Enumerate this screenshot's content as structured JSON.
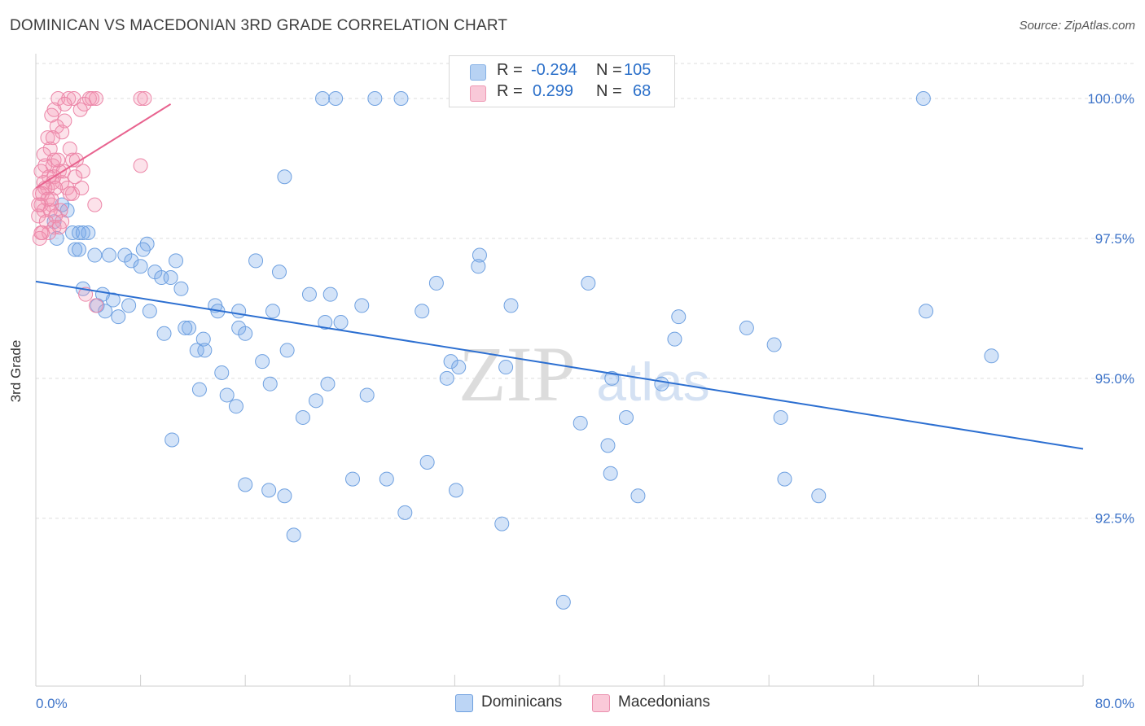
{
  "header": {
    "title": "DOMINICAN VS MACEDONIAN 3RD GRADE CORRELATION CHART",
    "source": "Source: ZipAtlas.com"
  },
  "watermark": {
    "zip": "ZIP",
    "atlas": "atlas"
  },
  "stats": {
    "rows": [
      {
        "r_label": "R =",
        "r_value": "-0.294",
        "n_label": "N =",
        "n_value": "105",
        "color": "#9fc3ef",
        "border": "#5e97dd"
      },
      {
        "r_label": "R =",
        "r_value": "0.299",
        "n_label": "N =",
        "n_value": "68",
        "color": "#f7b8cc",
        "border": "#e9789b"
      }
    ]
  },
  "legend": {
    "items": [
      {
        "label": "Dominicans",
        "color": "#bcd5f5",
        "border": "#6d9fdf"
      },
      {
        "label": "Macedonians",
        "color": "#fac9d8",
        "border": "#ea8fae"
      }
    ]
  },
  "colors": {
    "dominican_fill": "rgba(120,170,235,0.33)",
    "dominican_stroke": "#6ea0e0",
    "dominican_line": "#2c6fd1",
    "macedonian_fill": "rgba(245,150,180,0.28)",
    "macedonian_stroke": "#ec86a8",
    "macedonian_line": "#e8638f",
    "grid": "#dddddd",
    "axis_label": "#3d73c8"
  },
  "chart_data": {
    "type": "scatter",
    "title": "DOMINICAN VS MACEDONIAN 3RD GRADE CORRELATION CHART",
    "xlabel": "",
    "ylabel": "3rd Grade",
    "xlim": [
      0,
      80
    ],
    "ylim": [
      89.5,
      100.8
    ],
    "x_tick_labels": [
      {
        "value": 0,
        "label": "0.0%"
      },
      {
        "value": 80,
        "label": "80.0%"
      }
    ],
    "y_tick_labels": [
      {
        "value": 100,
        "label": "100.0%"
      },
      {
        "value": 97.5,
        "label": "97.5%"
      },
      {
        "value": 95,
        "label": "95.0%"
      },
      {
        "value": 92.5,
        "label": "92.5%"
      }
    ],
    "grid": true,
    "legend_position": "bottom-center",
    "series": [
      {
        "name": "Dominicans",
        "trend": {
          "x": [
            0,
            80
          ],
          "y": [
            96.73,
            93.74
          ]
        },
        "points": [
          [
            21.9,
            100.0
          ],
          [
            22.9,
            100.0
          ],
          [
            25.9,
            100.0
          ],
          [
            27.9,
            100.0
          ],
          [
            32.5,
            100.0
          ],
          [
            67.8,
            100.0
          ],
          [
            19.0,
            98.6
          ],
          [
            2.0,
            98.1
          ],
          [
            1.4,
            97.8
          ],
          [
            2.8,
            97.6
          ],
          [
            3.3,
            97.6
          ],
          [
            4.0,
            97.6
          ],
          [
            3.6,
            97.6
          ],
          [
            8.5,
            97.4
          ],
          [
            8.2,
            97.3
          ],
          [
            3.0,
            97.3
          ],
          [
            3.3,
            97.3
          ],
          [
            4.5,
            97.2
          ],
          [
            5.6,
            97.2
          ],
          [
            6.8,
            97.2
          ],
          [
            7.3,
            97.1
          ],
          [
            10.7,
            97.1
          ],
          [
            16.8,
            97.1
          ],
          [
            33.9,
            97.2
          ],
          [
            8.0,
            97.0
          ],
          [
            9.1,
            96.9
          ],
          [
            18.6,
            96.9
          ],
          [
            33.8,
            97.0
          ],
          [
            9.6,
            96.8
          ],
          [
            10.3,
            96.8
          ],
          [
            30.6,
            96.7
          ],
          [
            42.2,
            96.7
          ],
          [
            11.1,
            96.6
          ],
          [
            3.6,
            96.6
          ],
          [
            20.9,
            96.5
          ],
          [
            22.5,
            96.5
          ],
          [
            5.1,
            96.5
          ],
          [
            5.9,
            96.4
          ],
          [
            24.9,
            96.3
          ],
          [
            36.3,
            96.3
          ],
          [
            4.7,
            96.3
          ],
          [
            13.7,
            96.3
          ],
          [
            15.5,
            96.2
          ],
          [
            7.1,
            96.3
          ],
          [
            13.9,
            96.2
          ],
          [
            5.3,
            96.2
          ],
          [
            8.7,
            96.2
          ],
          [
            18.1,
            96.2
          ],
          [
            29.5,
            96.2
          ],
          [
            6.3,
            96.1
          ],
          [
            49.1,
            96.1
          ],
          [
            22.1,
            96.0
          ],
          [
            23.3,
            96.0
          ],
          [
            11.7,
            95.9
          ],
          [
            11.4,
            95.9
          ],
          [
            15.5,
            95.9
          ],
          [
            54.3,
            95.9
          ],
          [
            9.8,
            95.8
          ],
          [
            16.0,
            95.8
          ],
          [
            12.8,
            95.7
          ],
          [
            48.8,
            95.7
          ],
          [
            56.4,
            95.6
          ],
          [
            12.3,
            95.5
          ],
          [
            19.2,
            95.5
          ],
          [
            12.9,
            95.5
          ],
          [
            17.3,
            95.3
          ],
          [
            31.7,
            95.3
          ],
          [
            32.3,
            95.2
          ],
          [
            35.9,
            95.2
          ],
          [
            14.2,
            95.1
          ],
          [
            31.4,
            95.0
          ],
          [
            44.0,
            95.0
          ],
          [
            17.9,
            94.9
          ],
          [
            22.3,
            94.9
          ],
          [
            47.8,
            94.9
          ],
          [
            12.5,
            94.8
          ],
          [
            25.3,
            94.7
          ],
          [
            14.6,
            94.7
          ],
          [
            21.4,
            94.6
          ],
          [
            15.3,
            94.5
          ],
          [
            20.4,
            94.3
          ],
          [
            45.1,
            94.3
          ],
          [
            56.9,
            94.3
          ],
          [
            41.6,
            94.2
          ],
          [
            10.4,
            93.9
          ],
          [
            43.7,
            93.8
          ],
          [
            29.9,
            93.5
          ],
          [
            43.9,
            93.3
          ],
          [
            24.2,
            93.2
          ],
          [
            26.8,
            93.2
          ],
          [
            57.2,
            93.2
          ],
          [
            16.0,
            93.1
          ],
          [
            32.1,
            93.0
          ],
          [
            17.8,
            93.0
          ],
          [
            19.0,
            92.9
          ],
          [
            46.0,
            92.9
          ],
          [
            59.8,
            92.9
          ],
          [
            28.2,
            92.6
          ],
          [
            35.6,
            92.4
          ],
          [
            19.7,
            92.2
          ],
          [
            40.3,
            91.0
          ],
          [
            68.0,
            96.2
          ],
          [
            73.0,
            95.4
          ],
          [
            1.6,
            97.5
          ],
          [
            2.4,
            98.0
          ]
        ]
      },
      {
        "name": "Macedonians",
        "trend": {
          "x": [
            0,
            10.3
          ],
          "y": [
            98.4,
            99.9
          ]
        },
        "points": [
          [
            1.7,
            100.0
          ],
          [
            2.5,
            100.0
          ],
          [
            2.9,
            100.0
          ],
          [
            4.1,
            100.0
          ],
          [
            4.6,
            100.0
          ],
          [
            8.0,
            100.0
          ],
          [
            8.3,
            100.0
          ],
          [
            4.3,
            100.0
          ],
          [
            2.2,
            99.9
          ],
          [
            3.7,
            99.9
          ],
          [
            3.4,
            99.8
          ],
          [
            1.4,
            99.8
          ],
          [
            2.2,
            99.6
          ],
          [
            1.6,
            99.5
          ],
          [
            2.0,
            99.4
          ],
          [
            0.9,
            99.3
          ],
          [
            1.3,
            99.3
          ],
          [
            2.6,
            99.1
          ],
          [
            1.1,
            99.1
          ],
          [
            0.6,
            99.0
          ],
          [
            2.8,
            98.9
          ],
          [
            1.4,
            98.9
          ],
          [
            3.1,
            98.9
          ],
          [
            0.7,
            98.8
          ],
          [
            1.3,
            98.8
          ],
          [
            8.0,
            98.8
          ],
          [
            1.8,
            98.7
          ],
          [
            3.6,
            98.7
          ],
          [
            0.4,
            98.7
          ],
          [
            1.0,
            98.6
          ],
          [
            1.4,
            98.6
          ],
          [
            0.6,
            98.5
          ],
          [
            2.0,
            98.5
          ],
          [
            1.3,
            98.5
          ],
          [
            0.9,
            98.4
          ],
          [
            2.4,
            98.4
          ],
          [
            0.7,
            98.4
          ],
          [
            3.5,
            98.4
          ],
          [
            1.5,
            98.4
          ],
          [
            0.3,
            98.3
          ],
          [
            0.5,
            98.3
          ],
          [
            2.8,
            98.3
          ],
          [
            0.4,
            98.1
          ],
          [
            4.5,
            98.1
          ],
          [
            1.2,
            98.1
          ],
          [
            1.9,
            98.0
          ],
          [
            0.6,
            98.0
          ],
          [
            1.1,
            98.0
          ],
          [
            1.5,
            97.9
          ],
          [
            0.2,
            97.9
          ],
          [
            2.0,
            97.8
          ],
          [
            0.8,
            97.8
          ],
          [
            1.4,
            97.7
          ],
          [
            1.8,
            97.7
          ],
          [
            0.5,
            97.6
          ],
          [
            1.0,
            97.6
          ],
          [
            0.3,
            97.5
          ],
          [
            3.8,
            96.5
          ],
          [
            4.6,
            96.3
          ],
          [
            1.2,
            98.2
          ],
          [
            2.1,
            98.7
          ],
          [
            0.9,
            98.2
          ],
          [
            1.7,
            98.9
          ],
          [
            3.0,
            98.6
          ],
          [
            0.2,
            98.1
          ],
          [
            2.6,
            98.3
          ],
          [
            1.2,
            99.7
          ],
          [
            0.4,
            97.6
          ]
        ]
      }
    ]
  }
}
